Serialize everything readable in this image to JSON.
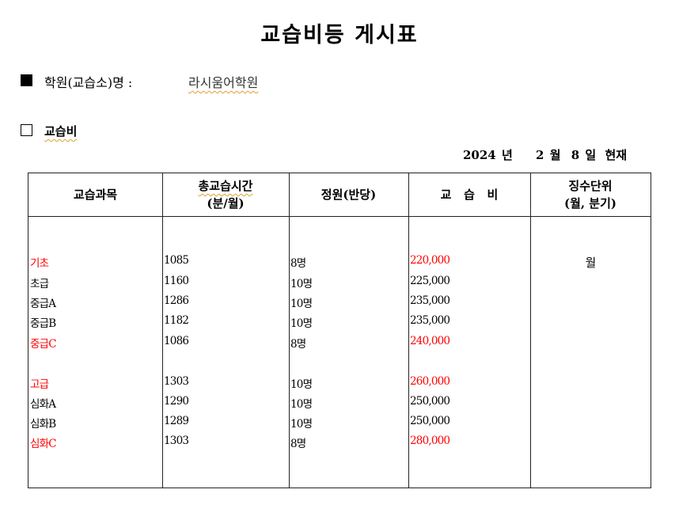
{
  "title": "교습비등 게시표",
  "academy_label": "학원(교습소)명 :",
  "academy_name": "라시움어학원",
  "section_label": "교습비",
  "date": {
    "year": "2024",
    "year_unit": "년",
    "month": "2",
    "month_unit": "월",
    "day": "8",
    "day_unit": "일",
    "suffix": "현재"
  },
  "table": {
    "headers": [
      {
        "line1": "교습과목",
        "line2": ""
      },
      {
        "line1": "총교습시간",
        "line2": "(분/월)"
      },
      {
        "line1": "정원(반당)",
        "line2": ""
      },
      {
        "line1": "교   습   비",
        "line2": ""
      },
      {
        "line1": "징수단위",
        "line2": "(월, 분기)"
      }
    ],
    "unit": "월",
    "rows": [
      {
        "course": "기초",
        "minutes": "1085",
        "capacity": "8명",
        "fee": "220,000",
        "highlight": true
      },
      {
        "course": "초급",
        "minutes": "1160",
        "capacity": "10명",
        "fee": "225,000",
        "highlight": false
      },
      {
        "course": "중급A",
        "minutes": "1286",
        "capacity": "10명",
        "fee": "235,000",
        "highlight": false
      },
      {
        "course": "중급B",
        "minutes": "1182",
        "capacity": "10명",
        "fee": "235,000",
        "highlight": false
      },
      {
        "course": "중급C",
        "minutes": "1086",
        "capacity": "8명",
        "fee": "240,000",
        "highlight": true
      },
      {
        "course": "고급",
        "minutes": "1303",
        "capacity": "10명",
        "fee": "260,000",
        "highlight": true
      },
      {
        "course": "심화A",
        "minutes": "1290",
        "capacity": "10명",
        "fee": "250,000",
        "highlight": false
      },
      {
        "course": "심화B",
        "minutes": "1289",
        "capacity": "10명",
        "fee": "250,000",
        "highlight": false
      },
      {
        "course": "심화C",
        "minutes": "1303",
        "capacity": "8명",
        "fee": "280,000",
        "highlight": true
      }
    ],
    "highlight_color": "#ff0000"
  }
}
